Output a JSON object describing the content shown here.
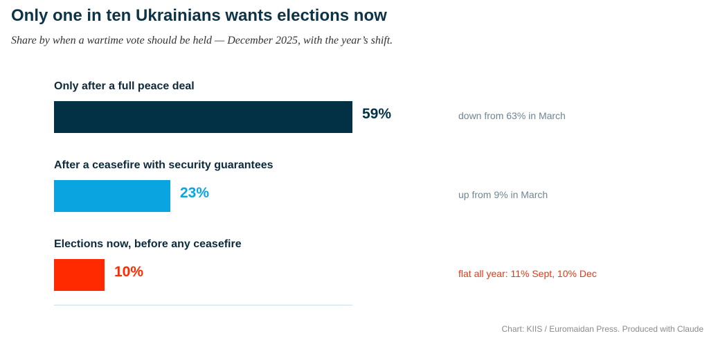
{
  "title": "Only one in ten Ukrainians wants elections now",
  "subtitle": "Share by when a wartime vote should be held — December 2025, with the year’s shift.",
  "source": "Chart: KIIS / Euromaidan Press. Produced with Claude",
  "chart_data": {
    "type": "bar",
    "orientation": "horizontal",
    "unit": "%",
    "xlim": [
      0,
      59
    ],
    "grid": false,
    "legend": "none",
    "categories": [
      "Only after a full peace deal",
      "After a ceasefire with security guarantees",
      "Elections now, before any ceasefire"
    ],
    "values": [
      59,
      23,
      10
    ],
    "value_labels": [
      "59%",
      "23%",
      "10%"
    ],
    "colors": [
      "#023146",
      "#0aa4e0",
      "#ff2a00"
    ],
    "annotations": [
      "down from 63% in March",
      "up from 9% in March",
      "flat all year: 11% Sept, 10% Dec"
    ],
    "annotation_colors": [
      "#6f8592",
      "#6f8592",
      "#e03a17"
    ]
  }
}
